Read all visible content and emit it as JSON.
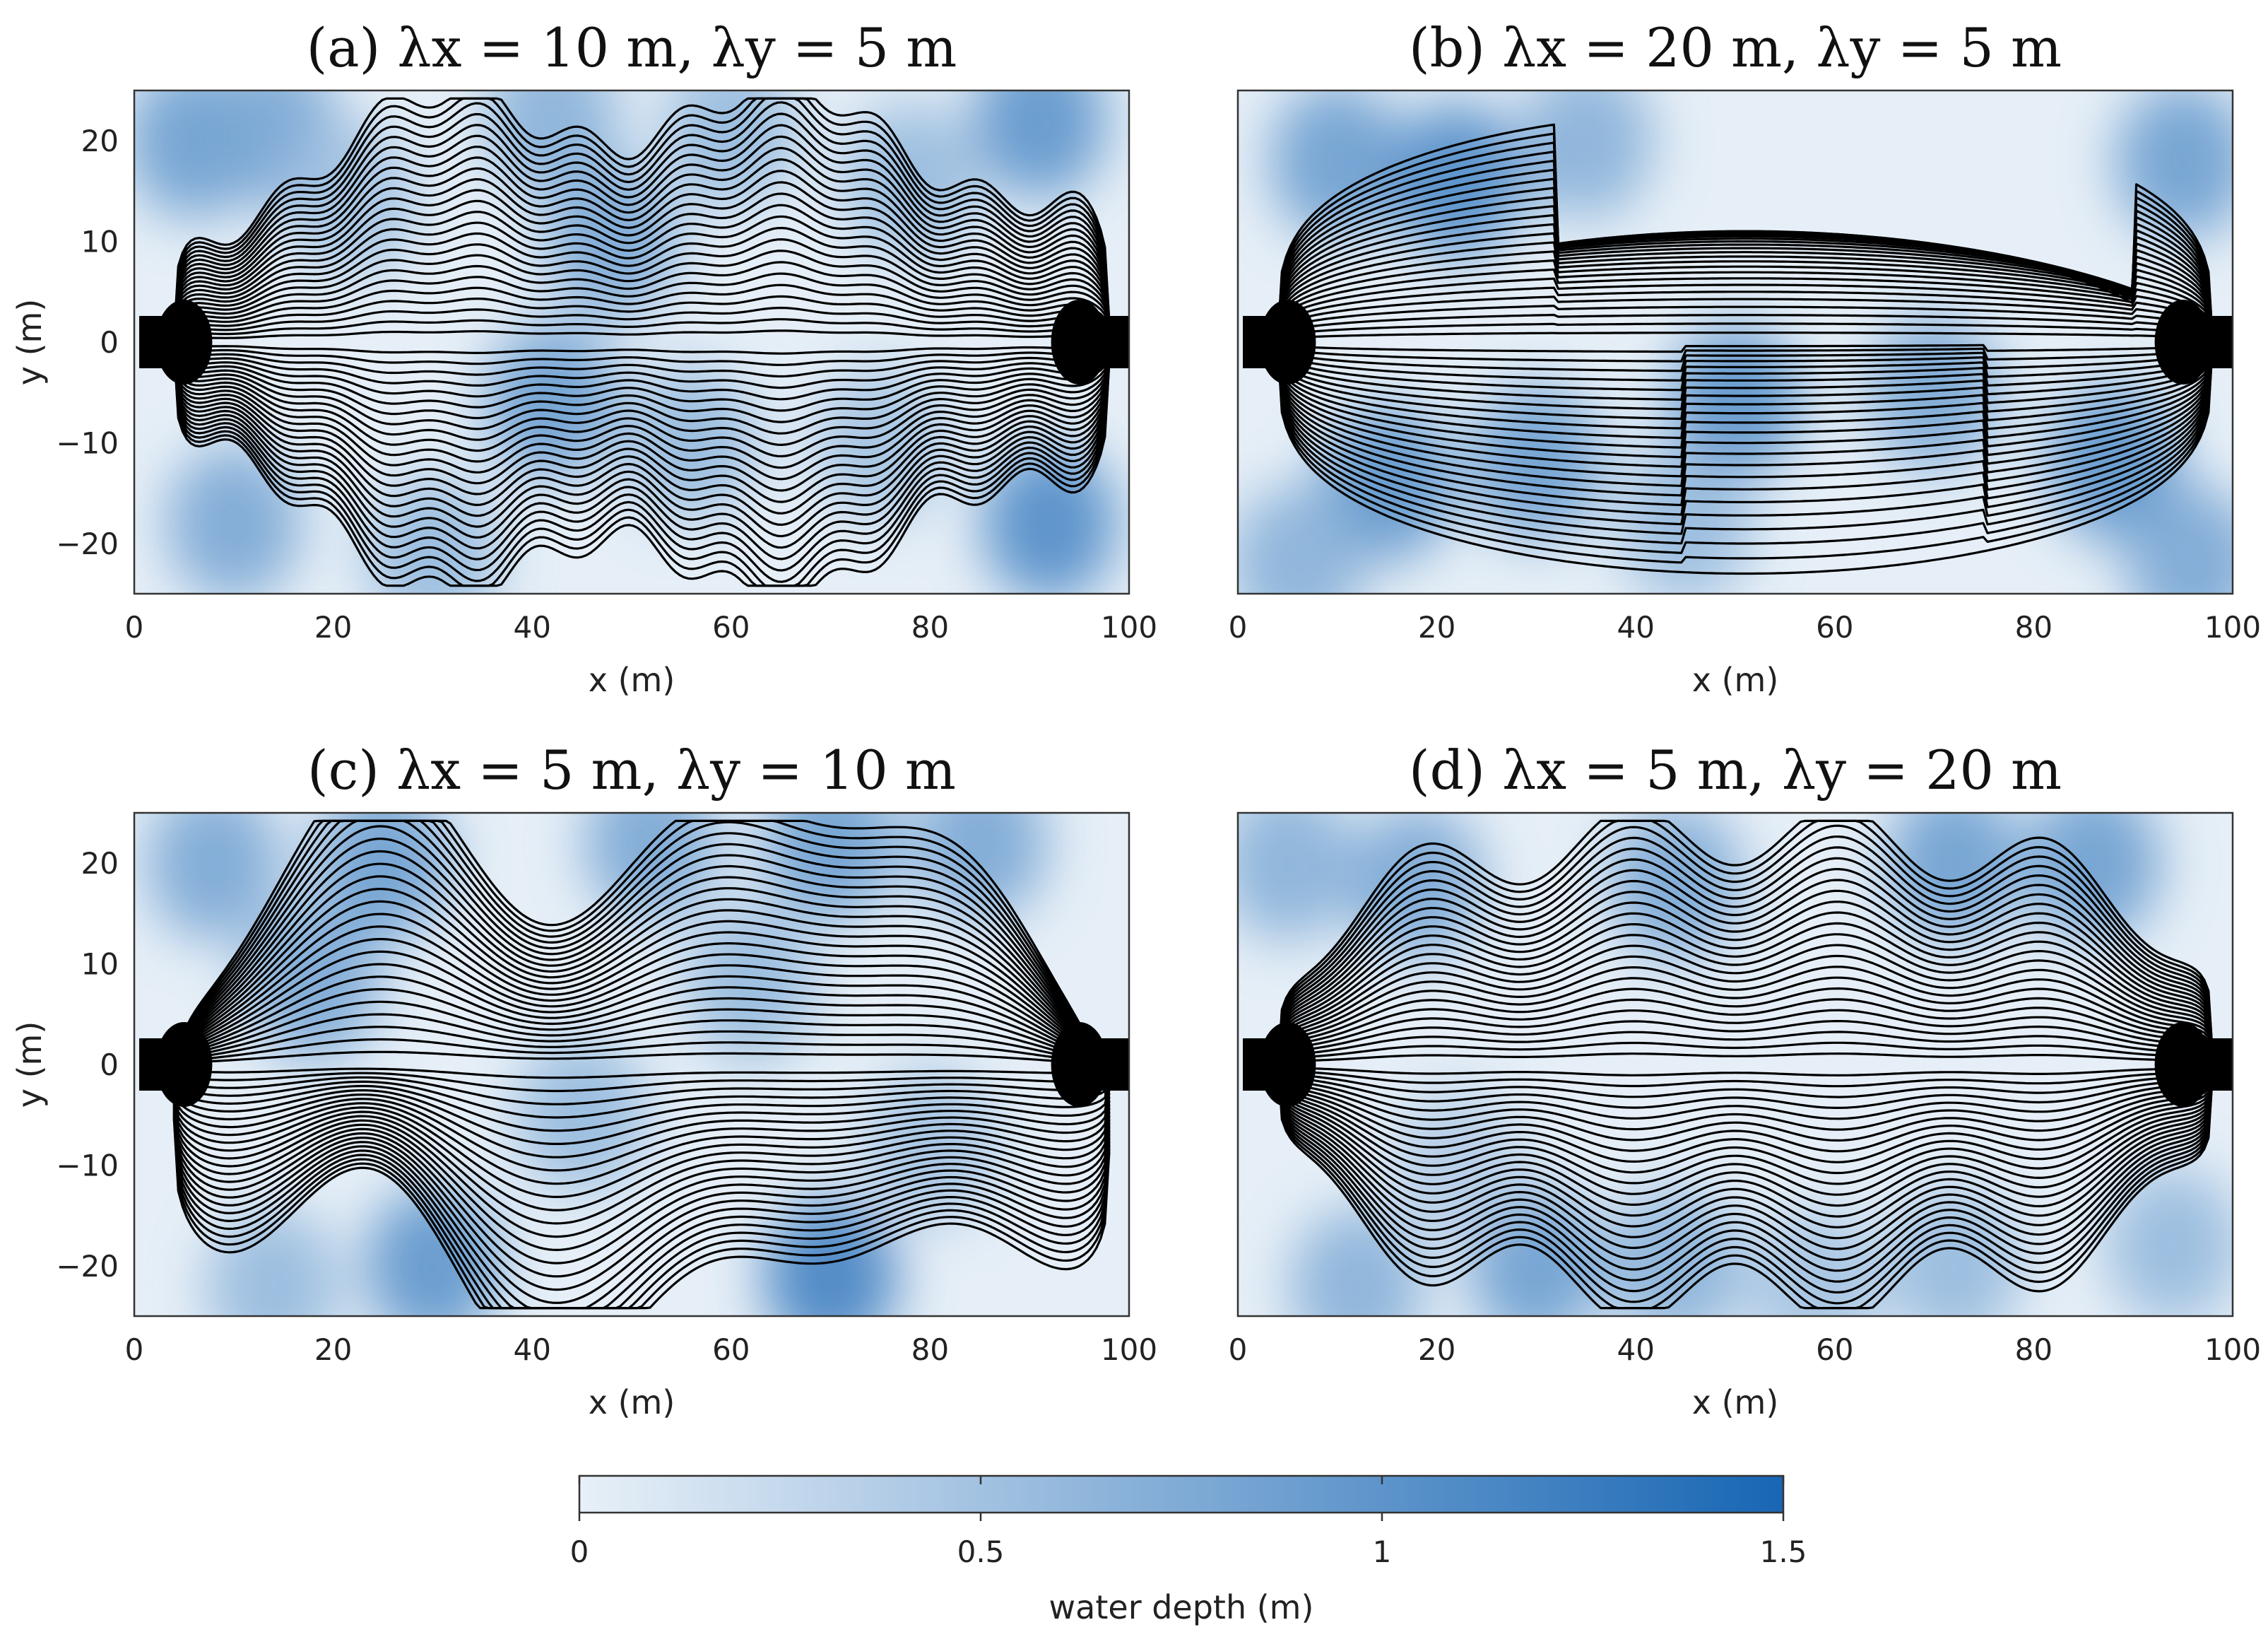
{
  "chart_data": [
    {
      "type": "heatmap",
      "panel": "a",
      "title": "(a)  λx = 10 m, λy = 5 m",
      "xlabel": "x (m)",
      "ylabel": "y (m)",
      "xlim": [
        0,
        100
      ],
      "ylim": [
        -25,
        25
      ],
      "xticks": [
        0,
        20,
        40,
        60,
        80,
        100
      ],
      "yticks": [
        20,
        10,
        0,
        -10,
        -20
      ],
      "ytick_labels": [
        "20",
        "10",
        "0",
        "−10",
        "−20"
      ],
      "overlay": "streamlines",
      "depth_blobs": [
        {
          "x": 6,
          "y": 20,
          "depth": 0.9
        },
        {
          "x": 14,
          "y": 21,
          "depth": 0.8
        },
        {
          "x": 42,
          "y": 22,
          "depth": 0.7
        },
        {
          "x": 60,
          "y": 21,
          "depth": 0.6
        },
        {
          "x": 91,
          "y": 22,
          "depth": 1.0
        },
        {
          "x": 48,
          "y": 10,
          "depth": 0.8
        },
        {
          "x": 42,
          "y": -6,
          "depth": 0.9
        },
        {
          "x": 56,
          "y": -10,
          "depth": 0.6
        },
        {
          "x": 10,
          "y": -18,
          "depth": 0.8
        },
        {
          "x": 30,
          "y": -21,
          "depth": 0.6
        },
        {
          "x": 92,
          "y": -18,
          "depth": 1.1
        },
        {
          "x": 22,
          "y": 14,
          "depth": 0.5
        },
        {
          "x": 78,
          "y": 16,
          "depth": 0.6
        },
        {
          "x": 75,
          "y": -10,
          "depth": 0.5
        }
      ]
    },
    {
      "type": "heatmap",
      "panel": "b",
      "title": "(b)  λx = 20 m, λy = 5 m",
      "xlabel": "x (m)",
      "ylabel": "",
      "xlim": [
        0,
        100
      ],
      "ylim": [
        -25,
        25
      ],
      "xticks": [
        0,
        20,
        40,
        60,
        80,
        100
      ],
      "overlay": "streamlines",
      "depth_blobs": [
        {
          "x": 10,
          "y": 18,
          "depth": 0.9
        },
        {
          "x": 22,
          "y": 16,
          "depth": 1.1
        },
        {
          "x": 35,
          "y": 20,
          "depth": 0.7
        },
        {
          "x": 95,
          "y": 18,
          "depth": 0.9
        },
        {
          "x": 15,
          "y": -14,
          "depth": 1.0
        },
        {
          "x": 30,
          "y": -12,
          "depth": 0.9
        },
        {
          "x": 50,
          "y": -6,
          "depth": 1.0
        },
        {
          "x": 70,
          "y": -5,
          "depth": 0.8
        },
        {
          "x": 88,
          "y": -12,
          "depth": 1.0
        },
        {
          "x": 6,
          "y": -22,
          "depth": 0.7
        },
        {
          "x": 96,
          "y": -22,
          "depth": 0.8
        },
        {
          "x": 45,
          "y": -18,
          "depth": 0.6
        }
      ]
    },
    {
      "type": "heatmap",
      "panel": "c",
      "title": "(c)  λx = 5 m, λy = 10 m",
      "xlabel": "x (m)",
      "ylabel": "y (m)",
      "xlim": [
        0,
        100
      ],
      "ylim": [
        -25,
        25
      ],
      "xticks": [
        0,
        20,
        40,
        60,
        80,
        100
      ],
      "yticks": [
        20,
        10,
        0,
        -10,
        -20
      ],
      "ytick_labels": [
        "20",
        "10",
        "0",
        "−10",
        "−20"
      ],
      "overlay": "streamlines",
      "depth_blobs": [
        {
          "x": 8,
          "y": 20,
          "depth": 0.8
        },
        {
          "x": 25,
          "y": 20,
          "depth": 0.9
        },
        {
          "x": 18,
          "y": 8,
          "depth": 0.8
        },
        {
          "x": 52,
          "y": 22,
          "depth": 0.8
        },
        {
          "x": 70,
          "y": 22,
          "depth": 0.9
        },
        {
          "x": 85,
          "y": 22,
          "depth": 0.8
        },
        {
          "x": 30,
          "y": -20,
          "depth": 1.0
        },
        {
          "x": 70,
          "y": -21,
          "depth": 1.2
        },
        {
          "x": 14,
          "y": -22,
          "depth": 0.6
        },
        {
          "x": 45,
          "y": -5,
          "depth": 0.6
        },
        {
          "x": 62,
          "y": 8,
          "depth": 0.6
        },
        {
          "x": 80,
          "y": -8,
          "depth": 0.5
        }
      ]
    },
    {
      "type": "heatmap",
      "panel": "d",
      "title": "(d)  λx = 5 m, λy = 20 m",
      "xlabel": "x (m)",
      "ylabel": "",
      "xlim": [
        0,
        100
      ],
      "ylim": [
        -25,
        25
      ],
      "xticks": [
        0,
        20,
        40,
        60,
        80,
        100
      ],
      "overlay": "streamlines",
      "depth_blobs": [
        {
          "x": 5,
          "y": 20,
          "depth": 0.7
        },
        {
          "x": 18,
          "y": 18,
          "depth": 0.8
        },
        {
          "x": 30,
          "y": -20,
          "depth": 0.9
        },
        {
          "x": 12,
          "y": -22,
          "depth": 0.7
        },
        {
          "x": 44,
          "y": 18,
          "depth": 0.8
        },
        {
          "x": 44,
          "y": -20,
          "depth": 0.7
        },
        {
          "x": 72,
          "y": 20,
          "depth": 0.9
        },
        {
          "x": 86,
          "y": 20,
          "depth": 0.9
        },
        {
          "x": 72,
          "y": -20,
          "depth": 0.6
        },
        {
          "x": 58,
          "y": -22,
          "depth": 0.5
        },
        {
          "x": 94,
          "y": -18,
          "depth": 0.6
        },
        {
          "x": 22,
          "y": -10,
          "depth": 0.4
        }
      ]
    }
  ],
  "colorbar": {
    "label": "water depth (m)",
    "range": [
      0,
      1.5
    ],
    "ticks": [
      0,
      0.5,
      1,
      1.5
    ],
    "tick_labels": [
      "0",
      "0.5",
      "1",
      "1.5"
    ],
    "color_low": "#e8f0f8",
    "color_high": "#1866b4"
  },
  "colors": {
    "background_field": "#e6eff7",
    "deep_water": "#1866b4",
    "streamline": "#000000",
    "inlet_block": "#000000"
  }
}
